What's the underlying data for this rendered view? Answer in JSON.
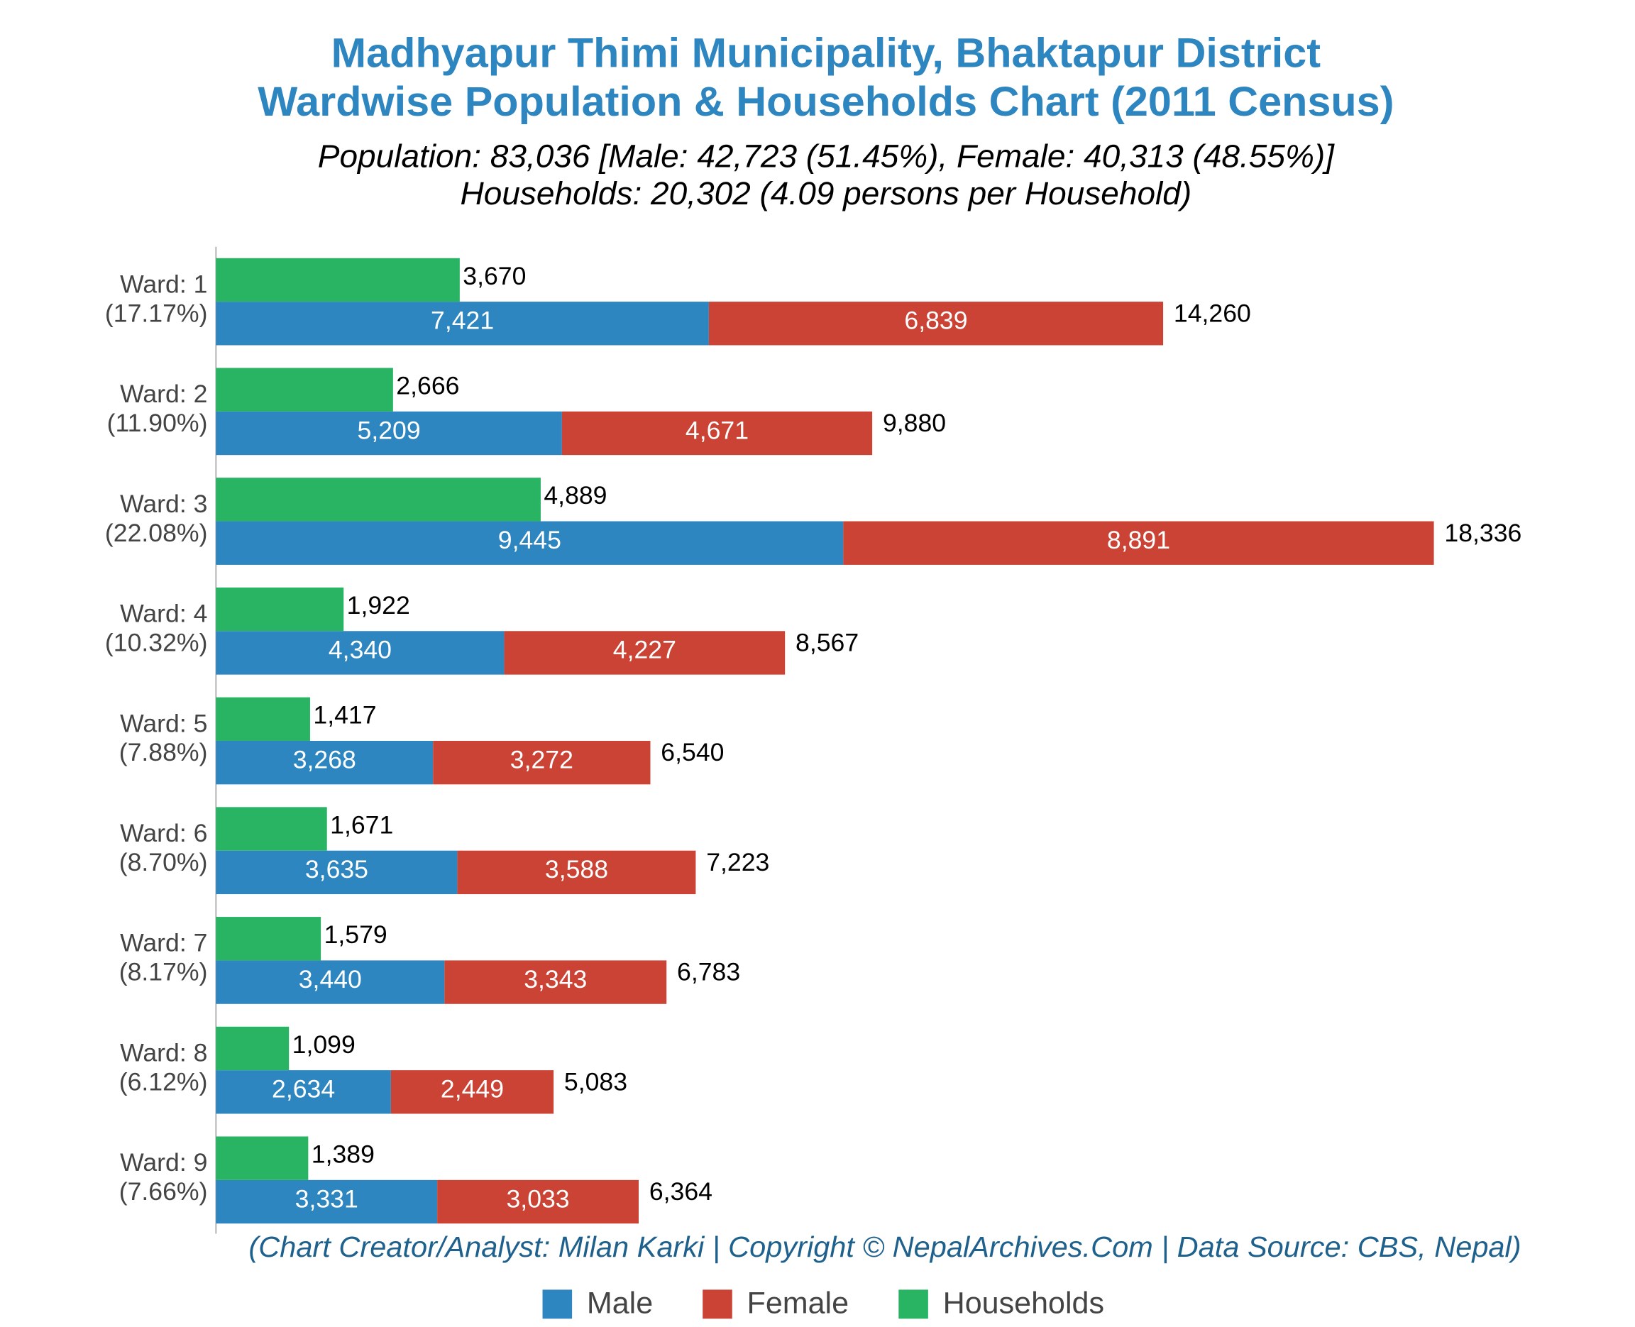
{
  "chart_data": {
    "type": "stacked_bar_with_households",
    "title": [
      "Madhyapur Thimi Municipality, Bhaktapur District",
      "Wardwise Population & Households Chart (2011 Census)"
    ],
    "subtitle": [
      "Population: 83,036 [Male: 42,723 (51.45%), Female: 40,313 (48.55%)]",
      "Households: 20,302 (4.09 persons per Household)"
    ],
    "credit": "(Chart Creator/Analyst: Milan Karki | Copyright © NepalArchives.Com | Data Source: CBS, Nepal)",
    "categories": [
      "Ward: 1",
      "Ward: 2",
      "Ward: 3",
      "Ward: 4",
      "Ward: 5",
      "Ward: 6",
      "Ward: 7",
      "Ward: 8",
      "Ward: 9"
    ],
    "category_shares": [
      "(17.17%)",
      "(11.90%)",
      "(22.08%)",
      "(10.32%)",
      "(7.88%)",
      "(8.70%)",
      "(8.17%)",
      "(6.12%)",
      "(7.66%)"
    ],
    "series": [
      {
        "name": "Male",
        "color": "#2e86c1",
        "stack": "population",
        "values": [
          7421,
          5209,
          9445,
          4340,
          3268,
          3635,
          3440,
          2634,
          3331
        ],
        "value_labels": [
          "7,421",
          "5,209",
          "9,445",
          "4,340",
          "3,268",
          "3,635",
          "3,440",
          "2,634",
          "3,331"
        ]
      },
      {
        "name": "Female",
        "color": "#cb4335",
        "stack": "population",
        "values": [
          6839,
          4671,
          8891,
          4227,
          3272,
          3588,
          3343,
          2449,
          3033
        ],
        "value_labels": [
          "6,839",
          "4,671",
          "8,891",
          "4,227",
          "3,272",
          "3,588",
          "3,343",
          "2,449",
          "3,033"
        ]
      },
      {
        "name": "Households",
        "color": "#28b463",
        "stack": "households",
        "values": [
          3670,
          2666,
          4889,
          1922,
          1417,
          1671,
          1579,
          1099,
          1389
        ],
        "value_labels": [
          "3,670",
          "2,666",
          "4,889",
          "1,922",
          "1,417",
          "1,671",
          "1,579",
          "1,099",
          "1,389"
        ]
      }
    ],
    "totals": {
      "values": [
        14260,
        9880,
        18336,
        8567,
        6540,
        7223,
        6783,
        5083,
        6364
      ],
      "value_labels": [
        "14,260",
        "9,880",
        "18,336",
        "8,567",
        "6,540",
        "7,223",
        "6,783",
        "5,083",
        "6,364"
      ]
    },
    "xlim": [
      0,
      20000
    ],
    "legend": "bottom"
  }
}
